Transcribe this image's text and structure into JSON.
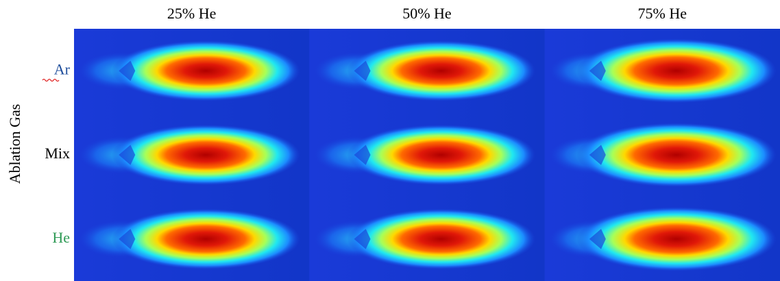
{
  "columns": [
    "25% He",
    "50% He",
    "75% He"
  ],
  "rows": [
    "Ar",
    "Mix",
    "He"
  ],
  "y_label": "Ablation Gas"
}
